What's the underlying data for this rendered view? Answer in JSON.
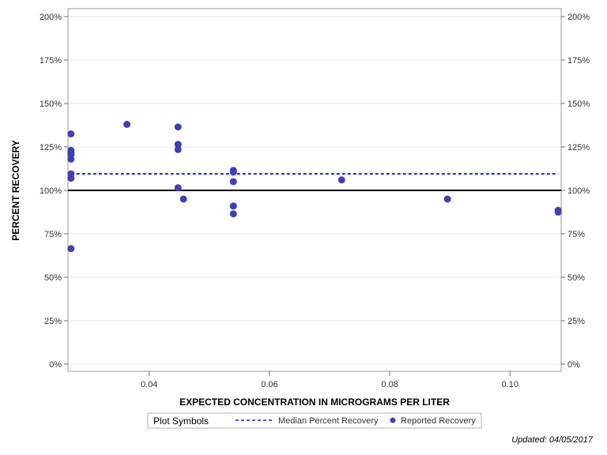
{
  "chart_data": {
    "type": "scatter",
    "title": "",
    "xlabel": "EXPECTED CONCENTRATION IN MICROGRAMS PER LITER",
    "ylabel": "PERCENT RECOVERY",
    "xlim": [
      0.0265,
      0.1085
    ],
    "ylim": [
      0,
      200
    ],
    "x_ticks": [
      0.04,
      0.06,
      0.08,
      0.1
    ],
    "x_tick_labels": [
      "0.04",
      "0.06",
      "0.08",
      "0.10"
    ],
    "y_ticks": [
      0,
      25,
      50,
      75,
      100,
      125,
      150,
      175,
      200
    ],
    "y_tick_labels": [
      "0%",
      "25%",
      "50%",
      "75%",
      "100%",
      "125%",
      "150%",
      "175%",
      "200%"
    ],
    "grid": true,
    "legend_placement": "bottom",
    "reference_line": {
      "y": 100,
      "color": "#000000"
    },
    "median_line": {
      "name": "Median Percent Recovery",
      "y": 109.5,
      "color": "#2222cc"
    },
    "series": [
      {
        "name": "Reported Recovery",
        "color": "#3f3fb5",
        "points": [
          {
            "x": 0.027,
            "y": 132.5
          },
          {
            "x": 0.027,
            "y": 123
          },
          {
            "x": 0.027,
            "y": 121.5
          },
          {
            "x": 0.027,
            "y": 120.5
          },
          {
            "x": 0.027,
            "y": 118
          },
          {
            "x": 0.027,
            "y": 109.5
          },
          {
            "x": 0.027,
            "y": 107
          },
          {
            "x": 0.027,
            "y": 66.5
          },
          {
            "x": 0.0363,
            "y": 138
          },
          {
            "x": 0.0448,
            "y": 136.5
          },
          {
            "x": 0.0448,
            "y": 126.5
          },
          {
            "x": 0.0448,
            "y": 123.5
          },
          {
            "x": 0.0448,
            "y": 101.5
          },
          {
            "x": 0.0457,
            "y": 95
          },
          {
            "x": 0.054,
            "y": 111.5
          },
          {
            "x": 0.054,
            "y": 110.5
          },
          {
            "x": 0.054,
            "y": 105
          },
          {
            "x": 0.054,
            "y": 91
          },
          {
            "x": 0.054,
            "y": 86.5
          },
          {
            "x": 0.072,
            "y": 106
          },
          {
            "x": 0.0896,
            "y": 95
          },
          {
            "x": 0.108,
            "y": 88.5
          },
          {
            "x": 0.108,
            "y": 87.5
          }
        ]
      }
    ],
    "legend": {
      "title": "Plot Symbols",
      "items": [
        "Median Percent Recovery",
        "Reported Recovery"
      ]
    }
  },
  "footnote": "Updated: 04/05/2017"
}
